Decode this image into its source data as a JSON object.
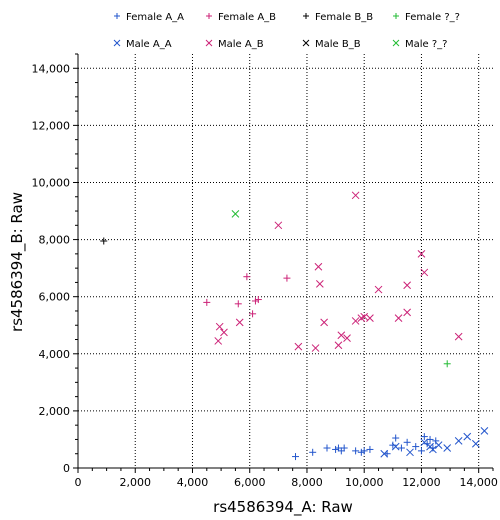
{
  "chart_data": {
    "type": "scatter",
    "xlabel": "rs4586394_A: Raw",
    "ylabel": "rs4586394_B: Raw",
    "xlim": [
      0,
      14500
    ],
    "ylim": [
      0,
      14500
    ],
    "x_ticks": [
      "0",
      "2,000",
      "4,000",
      "6,000",
      "8,000",
      "10,000",
      "12,000",
      "14,000"
    ],
    "y_ticks": [
      "0",
      "2,000",
      "4,000",
      "6,000",
      "8,000",
      "10,000",
      "12,000",
      "14,000"
    ],
    "x_tick_values": [
      0,
      2000,
      4000,
      6000,
      8000,
      10000,
      12000,
      14000
    ],
    "y_tick_values": [
      0,
      2000,
      4000,
      6000,
      8000,
      10000,
      12000,
      14000
    ],
    "grid": true,
    "legend_position": "top",
    "series": [
      {
        "name": "Female A_A",
        "marker": "plus",
        "color": "#2255cc",
        "x": [
          7600,
          8200,
          8700,
          9000,
          9100,
          9200,
          9300,
          9700,
          9900,
          10000,
          10200,
          10800,
          11000,
          11100,
          11300,
          11500,
          11800,
          12000,
          12100,
          12200,
          12300,
          12400,
          12500
        ],
        "y": [
          400,
          550,
          700,
          650,
          700,
          600,
          700,
          600,
          550,
          600,
          650,
          500,
          800,
          1050,
          700,
          900,
          750,
          600,
          1100,
          850,
          1000,
          700,
          950
        ]
      },
      {
        "name": "Female A_B",
        "marker": "plus",
        "color": "#cc2277",
        "x": [
          4500,
          5600,
          5900,
          6100,
          6200,
          6300,
          7300
        ],
        "y": [
          5800,
          5750,
          6700,
          5400,
          5850,
          5900,
          6650
        ]
      },
      {
        "name": "Female B_B",
        "marker": "plus",
        "color": "#000000",
        "x": [
          900
        ],
        "y": [
          7950
        ]
      },
      {
        "name": "Female ?_?",
        "marker": "plus",
        "color": "#22bb33",
        "x": [
          12900
        ],
        "y": [
          3650
        ]
      },
      {
        "name": "Male A_A",
        "marker": "x",
        "color": "#2255cc",
        "x": [
          10700,
          11100,
          11600,
          12100,
          12300,
          12400,
          12600,
          12900,
          13300,
          13600,
          13900,
          14200
        ],
        "y": [
          500,
          750,
          550,
          900,
          750,
          650,
          800,
          700,
          950,
          1100,
          850,
          1300
        ]
      },
      {
        "name": "Male A_B",
        "marker": "x",
        "color": "#cc2277",
        "x": [
          4900,
          4950,
          5100,
          5650,
          7000,
          7700,
          8300,
          8400,
          8450,
          8600,
          9100,
          9200,
          9400,
          9700,
          9700,
          9900,
          10000,
          10200,
          10500,
          11200,
          11500,
          11500,
          12000,
          12100,
          13300
        ],
        "y": [
          4450,
          4950,
          4750,
          5100,
          8500,
          4250,
          4200,
          7050,
          6450,
          5100,
          4300,
          4650,
          4550,
          9550,
          5150,
          5250,
          5300,
          5250,
          6250,
          5250,
          6400,
          5450,
          7500,
          6850,
          4600
        ]
      },
      {
        "name": "Male B_B",
        "marker": "x",
        "color": "#000000",
        "x": [],
        "y": []
      },
      {
        "name": "Male ?_?",
        "marker": "x",
        "color": "#22bb33",
        "x": [
          5500
        ],
        "y": [
          8900
        ]
      }
    ]
  }
}
